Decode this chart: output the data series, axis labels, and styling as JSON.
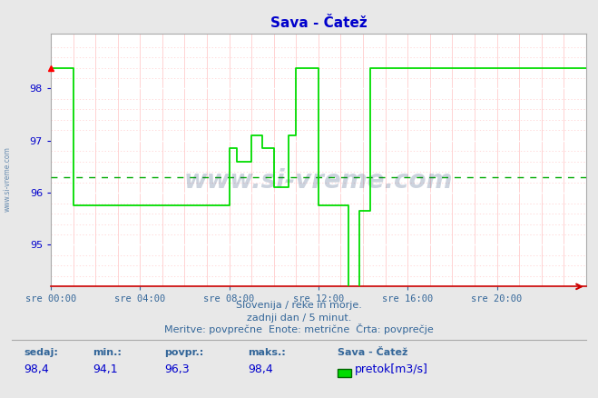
{
  "title": "Sava - Čatež",
  "bg_color": "#e8e8e8",
  "plot_bg_color": "#ffffff",
  "line_color": "#00dd00",
  "dashed_line_color": "#00aa00",
  "grid_major_color": "#ffffff",
  "grid_minor_color": "#ffcccc",
  "axis_color": "#0000cc",
  "text_color": "#336699",
  "spine_color": "#aaaaaa",
  "ylabel_ticks": [
    95,
    96,
    97,
    98
  ],
  "ylim": [
    94.2,
    99.05
  ],
  "xlim": [
    0,
    288
  ],
  "xtick_positions": [
    0,
    48,
    96,
    144,
    192,
    240
  ],
  "xtick_labels": [
    "sre 00:00",
    "sre 04:00",
    "sre 08:00",
    "sre 12:00",
    "sre 16:00",
    "sre 20:00"
  ],
  "avg_line_y": 96.3,
  "footer_line1": "Slovenija / reke in morje.",
  "footer_line2": "zadnji dan / 5 minut.",
  "footer_line3": "Meritve: povprečne  Enote: metrične  Črta: povprečje",
  "stat_sedaj": "98,4",
  "stat_min": "94,1",
  "stat_povpr": "96,3",
  "stat_maks": "98,4",
  "legend_label": "pretok[m3/s]",
  "legend_station": "Sava - Čatež",
  "watermark_text": "www.si-vreme.com",
  "data_x": [
    0,
    12,
    12,
    96,
    96,
    100,
    100,
    108,
    108,
    114,
    114,
    120,
    120,
    128,
    128,
    132,
    132,
    144,
    144,
    160,
    160,
    162,
    162,
    166,
    166,
    168,
    168,
    172,
    172,
    288
  ],
  "data_y": [
    98.4,
    98.4,
    95.75,
    95.75,
    96.85,
    96.85,
    96.6,
    96.6,
    97.1,
    97.1,
    96.85,
    96.85,
    96.1,
    96.1,
    97.1,
    97.1,
    98.4,
    98.4,
    95.75,
    95.75,
    94.1,
    94.1,
    94.1,
    94.1,
    95.65,
    95.65,
    95.65,
    95.65,
    98.4,
    98.4
  ]
}
